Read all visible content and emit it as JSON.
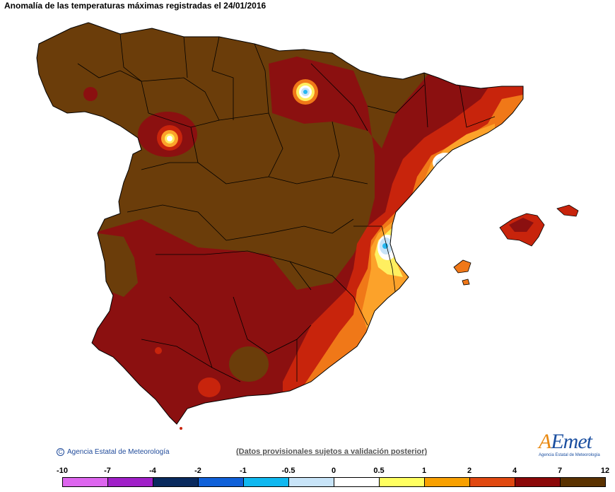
{
  "title": "Anomalía de las temperaturas máximas registradas el 24/01/2016",
  "credit": "Agencia Estatal de Meteorología",
  "credit_symbol": "C",
  "notice": "(Datos provisionales sujetos a validación posterior)",
  "logo": {
    "text_a": "A",
    "text_rest": "Emet",
    "sub": "Agencia Estatal de Meteorología"
  },
  "legend": {
    "ticks": [
      "-10",
      "-7",
      "-4",
      "-2",
      "-1",
      "-0.5",
      "0",
      "0.5",
      "1",
      "2",
      "4",
      "7",
      "12"
    ],
    "colors": [
      "#dd66ee",
      "#a020c8",
      "#0a2a5e",
      "#1060d8",
      "#10b8f0",
      "#c8e4f8",
      "#ffffff",
      "#ffff60",
      "#f8a000",
      "#e04810",
      "#8b0808",
      "#5a3200"
    ]
  },
  "palette": {
    "brown": "#6b3d0a",
    "darkred": "#8b1010",
    "red": "#c8240c",
    "orange": "#f07818",
    "lightorange": "#fca22a",
    "yellow": "#ffef60",
    "white": "#ffffff",
    "lightblue": "#c8e4f8",
    "cyan": "#28b8f0"
  },
  "regions": {
    "main_land": "Spain mainland",
    "islands": "Balearic Islands"
  }
}
